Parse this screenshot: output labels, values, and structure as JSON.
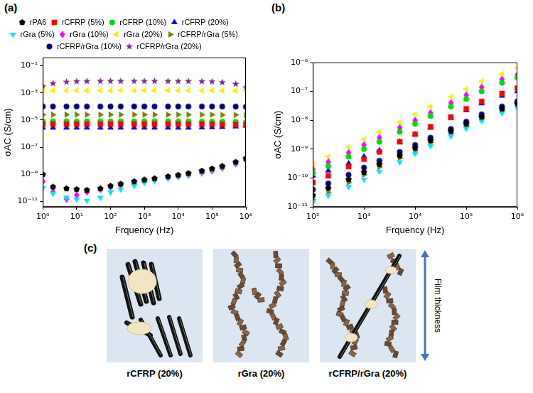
{
  "chart_data": [
    {
      "type": "scatter",
      "panel": "(a)",
      "x_label": "Frquency (Hz)",
      "y_label": "σAC (S/cm)",
      "log": true,
      "grid": false,
      "legend": "top",
      "xlim": [
        1,
        1000000
      ],
      "ylim": [
        4e-12,
        0.4
      ],
      "xticks": [
        {
          "value": 1,
          "label": "10⁰"
        },
        {
          "value": 10,
          "label": "10¹"
        },
        {
          "value": 100,
          "label": "10²"
        },
        {
          "value": 1000,
          "label": "10³"
        },
        {
          "value": 10000,
          "label": "10⁴"
        },
        {
          "value": 100000,
          "label": "10⁵"
        },
        {
          "value": 1000000,
          "label": "10⁶"
        }
      ],
      "yticks": [
        {
          "value": 1e-11,
          "label": "10⁻¹¹"
        },
        {
          "value": 1e-09,
          "label": "10⁻⁹"
        },
        {
          "value": 1e-07,
          "label": "10⁻⁷"
        },
        {
          "value": 1e-05,
          "label": "10⁻⁵"
        },
        {
          "value": 0.001,
          "label": "10⁻³"
        },
        {
          "value": 0.1,
          "label": "10⁻¹"
        }
      ],
      "x": [
        1,
        2,
        5,
        10,
        20,
        50,
        100,
        200,
        500,
        1000,
        2000,
        5000,
        10000,
        20000,
        50000,
        100000,
        200000,
        500000,
        1000000
      ],
      "series": [
        {
          "name": "rPA6",
          "color": "#000000",
          "marker": "pentagon",
          "values": [
            1e-09,
            1.2e-10,
            9e-11,
            8e-11,
            7e-11,
            9e-11,
            1.4e-10,
            2e-10,
            3e-10,
            4e-10,
            5e-10,
            7e-10,
            9e-10,
            1.2e-09,
            1.8e-09,
            2.6e-09,
            4e-09,
            8e-09,
            1.5e-08
          ]
        },
        {
          "name": "rCFRP (5%)",
          "color": "#ff0000",
          "marker": "square",
          "values": [
            5e-06,
            5e-06,
            5e-06,
            5e-06,
            5e-06,
            5e-06,
            5e-06,
            5e-06,
            5e-06,
            5e-06,
            5e-06,
            5e-06,
            5e-06,
            5e-06,
            5e-06,
            4.9e-06,
            4.8e-06,
            4.6e-06,
            4.4e-06
          ]
        },
        {
          "name": "rCFRP (10%)",
          "color": "#00dd00",
          "marker": "circle",
          "values": [
            8e-06,
            8e-06,
            8e-06,
            8e-06,
            8e-06,
            8e-06,
            8e-06,
            8e-06,
            8e-06,
            8e-06,
            8e-06,
            8e-06,
            8e-06,
            8e-06,
            7.9e-06,
            7.8e-06,
            7.6e-06,
            7.3e-06,
            7e-06
          ]
        },
        {
          "name": "rCFRP (20%)",
          "color": "#0000ff",
          "marker": "triangle",
          "values": [
            2.7e-06,
            2.7e-06,
            2.7e-06,
            2.7e-06,
            2.7e-06,
            2.7e-06,
            2.7e-06,
            2.7e-06,
            2.7e-06,
            2.7e-06,
            2.7e-06,
            2.7e-06,
            2.7e-06,
            2.7e-06,
            2.8e-06,
            2.9e-06,
            3e-06,
            3.3e-06,
            3.8e-06
          ]
        },
        {
          "name": "rGra (5%)",
          "color": "#00e5ff",
          "marker": "triangle_down",
          "values": [
            1e-10,
            4e-11,
            2e-11,
            1.5e-11,
            1.2e-11,
            2e-11,
            5e-11,
            8e-11,
            1.5e-10,
            2.5e-10,
            3.5e-10,
            5e-10,
            7e-10,
            1e-09,
            1.5e-09,
            2e-09,
            3.5e-09,
            7e-09,
            1.3e-08
          ]
        },
        {
          "name": "rGra (10%)",
          "color": "#ff00ff",
          "marker": "diamond",
          "values": [
            3e-10,
            5e-11,
            1.5e-11,
            3e-11,
            5e-11,
            8e-11,
            1.2e-10,
            1.6e-10,
            2.5e-10,
            3.2e-10,
            4e-10,
            5.5e-10,
            7e-10,
            9e-10,
            1.3e-09,
            1.8e-09,
            3e-09,
            6e-09,
            1.1e-08
          ]
        },
        {
          "name": "rGra (20%)",
          "color": "#f5f500",
          "marker": "triangle_left",
          "values": [
            0.0015,
            0.0015,
            0.0015,
            0.0015,
            0.0015,
            0.0015,
            0.0015,
            0.0015,
            0.0015,
            0.0015,
            0.0015,
            0.0015,
            0.0015,
            0.0015,
            0.0015,
            0.0015,
            0.0015,
            0.00145,
            0.0014
          ]
        },
        {
          "name": "rCFRP/rGra (5%)",
          "color": "#808000",
          "marker": "triangle_right",
          "values": [
            2.5e-05,
            2.5e-05,
            2.5e-05,
            2.5e-05,
            2.5e-05,
            2.5e-05,
            2.5e-05,
            2.5e-05,
            2.5e-05,
            2.5e-05,
            2.5e-05,
            2.5e-05,
            2.5e-05,
            2.5e-05,
            2.5e-05,
            2.5e-05,
            2.4e-05,
            2.4e-05,
            2.3e-05
          ]
        },
        {
          "name": "rCFRP/rGra (10%)",
          "color": "#000080",
          "marker": "circle",
          "values": [
            0.0001,
            0.0001,
            0.0001,
            0.0001,
            0.0001,
            0.0001,
            0.0001,
            0.0001,
            0.0001,
            0.0001,
            0.0001,
            0.0001,
            0.0001,
            0.0001,
            0.0001,
            0.0001,
            0.0001,
            9.8e-05,
            9.5e-05
          ]
        },
        {
          "name": "rCFRP/rGra (20%)",
          "color": "#7b2d8e",
          "marker": "star",
          "values": [
            0.003,
            0.005,
            0.0065,
            0.007,
            0.0072,
            0.0073,
            0.0073,
            0.0073,
            0.0073,
            0.0073,
            0.0073,
            0.0073,
            0.0073,
            0.0072,
            0.007,
            0.0068,
            0.006,
            0.0045,
            0.0025
          ]
        }
      ]
    },
    {
      "type": "scatter",
      "panel": "(b)",
      "x_label": "Frquency (Hz)",
      "y_label": "σAC (S/cm)",
      "log": true,
      "grid": false,
      "xlim": [
        100,
        1000000
      ],
      "ylim": [
        1e-11,
        1e-06
      ],
      "xticks": [
        {
          "value": 100,
          "label": "10²"
        },
        {
          "value": 1000,
          "label": "10³"
        },
        {
          "value": 10000,
          "label": "10⁴"
        },
        {
          "value": 100000,
          "label": "10⁵"
        },
        {
          "value": 1000000,
          "label": "10⁶"
        }
      ],
      "yticks": [
        {
          "value": 1e-11,
          "label": "10⁻¹¹"
        },
        {
          "value": 1e-10,
          "label": "10⁻¹⁰"
        },
        {
          "value": 1e-09,
          "label": "10⁻⁹"
        },
        {
          "value": 1e-08,
          "label": "10⁻⁸"
        },
        {
          "value": 1e-07,
          "label": "10⁻⁷"
        },
        {
          "value": 1e-06,
          "label": "10⁻⁶"
        }
      ],
      "x": [
        100,
        200,
        500,
        1000,
        2000,
        5000,
        10000,
        20000,
        50000,
        100000,
        200000,
        500000,
        1000000
      ],
      "series": [
        {
          "name": "rPA6",
          "color": "#000000",
          "marker": "pentagon",
          "values": [
            2.5e-11,
            4.5e-11,
            9e-11,
            1.6e-10,
            3e-10,
            6e-10,
            1.1e-09,
            2e-09,
            4.2e-09,
            7.5e-09,
            1.3e-08,
            2.5e-08,
            3.8e-08
          ]
        },
        {
          "name": "rCFRP (5%)",
          "color": "#ff0000",
          "marker": "square",
          "values": [
            7e-11,
            1.2e-10,
            2.5e-10,
            4.5e-10,
            8e-10,
            1.8e-09,
            3.3e-09,
            6e-09,
            1.3e-08,
            2.5e-08,
            4.5e-08,
            8.5e-08,
            1.3e-07
          ]
        },
        {
          "name": "rCFRP (10%)",
          "color": "#00dd00",
          "marker": "circle",
          "values": [
            1.5e-10,
            2.6e-10,
            5.5e-10,
            1e-09,
            1.8e-09,
            4e-09,
            7.5e-09,
            1.4e-08,
            3e-08,
            5.5e-08,
            1e-07,
            2e-07,
            3e-07
          ]
        },
        {
          "name": "rCFRP (20%)",
          "color": "#0000ff",
          "marker": "triangle",
          "values": [
            1.2e-10,
            1.8e-10,
            3.2e-10,
            5.5e-10,
            9e-10,
            1.8e-09,
            3.2e-09,
            5.5e-09,
            1.2e-08,
            2.2e-08,
            3.8e-08,
            7e-08,
            1e-07
          ]
        },
        {
          "name": "rGra (5%)",
          "color": "#00e5ff",
          "marker": "triangle_down",
          "values": [
            1.5e-11,
            2.5e-11,
            5e-11,
            9e-11,
            1.7e-10,
            3.6e-10,
            7e-10,
            1.3e-09,
            2.8e-09,
            5.2e-09,
            9.5e-09,
            1.8e-08,
            2.7e-08
          ]
        },
        {
          "name": "rGra (10%)",
          "color": "#ff00ff",
          "marker": "diamond",
          "values": [
            2e-10,
            3.6e-10,
            7.5e-10,
            1.4e-09,
            2.5e-09,
            5.5e-09,
            1e-08,
            1.8e-08,
            4e-08,
            7.5e-08,
            1.4e-07,
            2.6e-07,
            3.8e-07
          ]
        },
        {
          "name": "rGra (20%)",
          "color": "#f5f500",
          "marker": "triangle_left",
          "values": [
            3e-10,
            5.5e-10,
            1.2e-09,
            2.2e-09,
            4e-09,
            8.5e-09,
            1.6e-08,
            3e-08,
            6.5e-08,
            1.2e-07,
            2.2e-07,
            4e-07,
            6.5e-07
          ]
        },
        {
          "name": "rCFRP/rGra (5%)",
          "color": "#808000",
          "marker": "triangle_right",
          "values": [
            1.8e-11,
            3.2e-11,
            7e-11,
            1.3e-10,
            2.4e-10,
            5e-10,
            9e-10,
            1.7e-09,
            3.5e-09,
            6.5e-09,
            1.2e-08,
            2.2e-08,
            3.3e-08
          ]
        },
        {
          "name": "rCFRP/rGra (10%)",
          "color": "#000080",
          "marker": "circle",
          "values": [
            4e-11,
            6.5e-11,
            1.3e-10,
            2.3e-10,
            4e-10,
            8e-10,
            1.4e-09,
            2.5e-09,
            5e-09,
            9e-09,
            1.6e-08,
            3e-08,
            4.5e-08
          ]
        }
      ]
    }
  ],
  "diagram": {
    "panel": "(c)",
    "boxes": [
      {
        "label": "rCFRP (20%)"
      },
      {
        "label": "rGra (20%)"
      },
      {
        "label": "rCFRP/rGra (20%)"
      }
    ],
    "arrow_label": "Film thickness"
  }
}
